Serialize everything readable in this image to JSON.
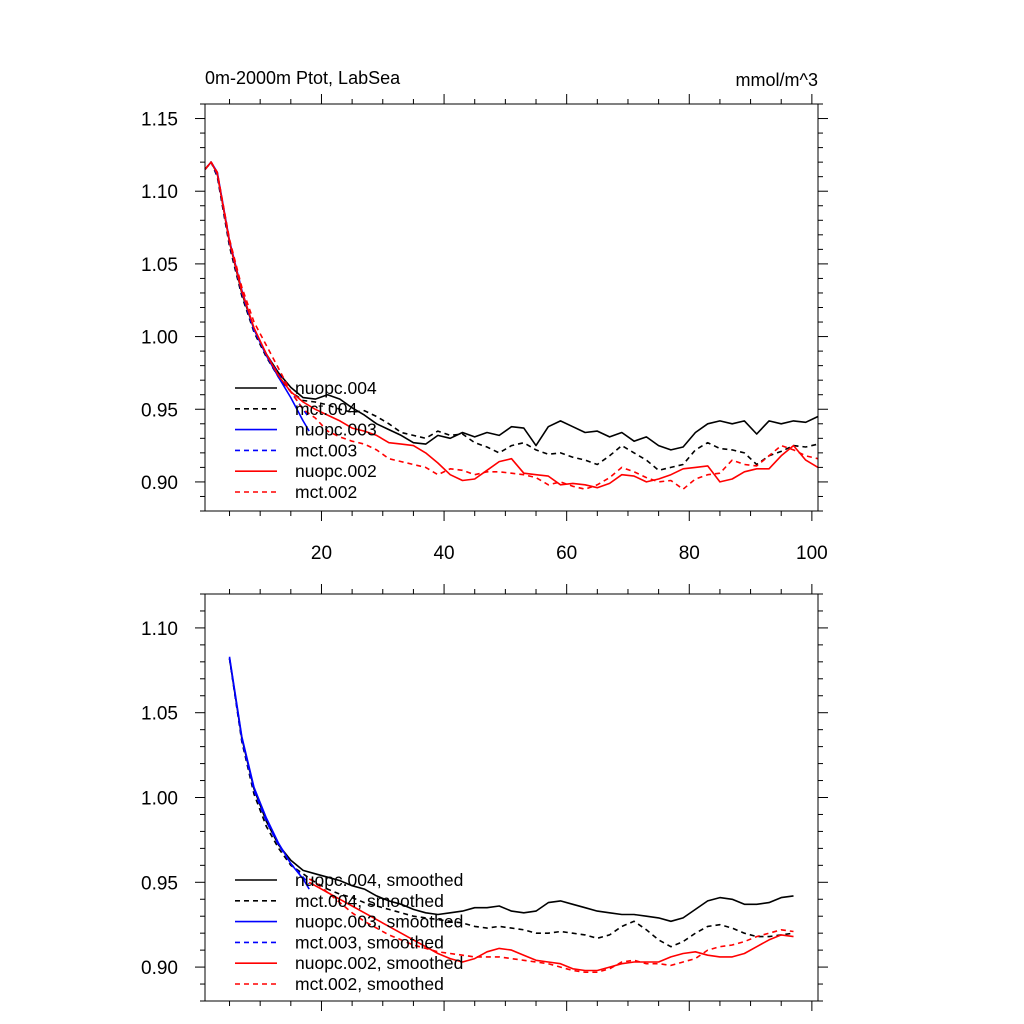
{
  "chart_data": [
    {
      "type": "line",
      "title": "0m-2000m Ptot, LabSea",
      "units": "mmol/m^3",
      "xlim": [
        1,
        101
      ],
      "ylim": [
        0.88,
        1.16
      ],
      "yticks": [
        0.9,
        0.95,
        1.0,
        1.05,
        1.1,
        1.15
      ],
      "xticks": [
        20,
        40,
        60,
        80,
        100
      ],
      "show_x_tick_labels": true,
      "legend_position": "lower-left",
      "series": [
        {
          "name": "nuopc.004",
          "color": "#000000",
          "dash": "solid",
          "x": [
            1,
            2,
            3,
            5,
            7,
            9,
            11,
            13,
            15,
            17,
            19,
            21,
            23,
            25,
            27,
            29,
            31,
            33,
            35,
            37,
            39,
            41,
            43,
            45,
            47,
            49,
            51,
            53,
            55,
            57,
            59,
            61,
            63,
            65,
            67,
            69,
            71,
            73,
            75,
            77,
            79,
            81,
            83,
            85,
            87,
            89,
            91,
            93,
            95,
            97,
            99,
            101
          ],
          "y": [
            1.115,
            1.12,
            1.112,
            1.065,
            1.03,
            1.005,
            0.988,
            0.975,
            0.965,
            0.958,
            0.957,
            0.96,
            0.957,
            0.951,
            0.946,
            0.94,
            0.936,
            0.932,
            0.927,
            0.926,
            0.932,
            0.93,
            0.934,
            0.931,
            0.934,
            0.932,
            0.938,
            0.937,
            0.925,
            0.938,
            0.942,
            0.938,
            0.934,
            0.935,
            0.931,
            0.934,
            0.928,
            0.931,
            0.925,
            0.922,
            0.924,
            0.934,
            0.94,
            0.942,
            0.94,
            0.942,
            0.933,
            0.942,
            0.94,
            0.942,
            0.941,
            0.945
          ]
        },
        {
          "name": "mct.004",
          "color": "#000000",
          "dash": "dashed",
          "x": [
            1,
            2,
            3,
            5,
            7,
            9,
            11,
            13,
            15,
            17,
            19,
            21,
            23,
            25,
            27,
            29,
            31,
            33,
            35,
            37,
            39,
            41,
            43,
            45,
            47,
            49,
            51,
            53,
            55,
            57,
            59,
            61,
            63,
            65,
            67,
            69,
            71,
            73,
            75,
            77,
            79,
            81,
            83,
            85,
            87,
            89,
            91,
            93,
            95,
            97,
            99,
            101
          ],
          "y": [
            1.115,
            1.12,
            1.11,
            1.062,
            1.028,
            1.003,
            0.986,
            0.972,
            0.962,
            0.956,
            0.955,
            0.953,
            0.95,
            0.948,
            0.949,
            0.945,
            0.94,
            0.934,
            0.932,
            0.93,
            0.935,
            0.932,
            0.933,
            0.927,
            0.924,
            0.92,
            0.925,
            0.927,
            0.922,
            0.919,
            0.92,
            0.917,
            0.915,
            0.912,
            0.918,
            0.925,
            0.92,
            0.915,
            0.908,
            0.91,
            0.912,
            0.922,
            0.927,
            0.923,
            0.922,
            0.92,
            0.912,
            0.918,
            0.921,
            0.925,
            0.924,
            0.926
          ]
        },
        {
          "name": "nuopc.003",
          "color": "#0000ff",
          "dash": "solid",
          "x": [
            1,
            2,
            3,
            5,
            7,
            9,
            11,
            13,
            15,
            17,
            18
          ],
          "y": [
            1.115,
            1.12,
            1.113,
            1.066,
            1.032,
            1.005,
            0.987,
            0.972,
            0.958,
            0.942,
            0.935
          ]
        },
        {
          "name": "mct.003",
          "color": "#0000ff",
          "dash": "dashed",
          "x": [
            1,
            2,
            3,
            5,
            7,
            9,
            11,
            13,
            15,
            17,
            18
          ],
          "y": [
            1.115,
            1.12,
            1.111,
            1.064,
            1.03,
            1.004,
            0.988,
            0.974,
            0.962,
            0.95,
            0.944
          ]
        },
        {
          "name": "nuopc.002",
          "color": "#ff0000",
          "dash": "solid",
          "x": [
            1,
            2,
            3,
            5,
            7,
            9,
            11,
            13,
            15,
            17,
            19,
            21,
            23,
            25,
            27,
            29,
            31,
            33,
            35,
            37,
            39,
            41,
            43,
            45,
            47,
            49,
            51,
            53,
            55,
            57,
            59,
            61,
            63,
            65,
            67,
            69,
            71,
            73,
            75,
            77,
            79,
            81,
            83,
            85,
            87,
            89,
            91,
            93,
            95,
            97,
            99,
            101
          ],
          "y": [
            1.115,
            1.12,
            1.112,
            1.065,
            1.031,
            1.006,
            0.988,
            0.973,
            0.962,
            0.955,
            0.95,
            0.946,
            0.942,
            0.937,
            0.935,
            0.932,
            0.927,
            0.926,
            0.925,
            0.92,
            0.913,
            0.905,
            0.901,
            0.902,
            0.908,
            0.914,
            0.916,
            0.906,
            0.905,
            0.904,
            0.898,
            0.899,
            0.898,
            0.896,
            0.899,
            0.905,
            0.904,
            0.9,
            0.902,
            0.905,
            0.909,
            0.91,
            0.911,
            0.9,
            0.902,
            0.907,
            0.909,
            0.909,
            0.918,
            0.925,
            0.915,
            0.91
          ]
        },
        {
          "name": "mct.002",
          "color": "#ff0000",
          "dash": "dashed",
          "x": [
            1,
            2,
            3,
            5,
            7,
            9,
            11,
            13,
            15,
            17,
            19,
            21,
            23,
            25,
            27,
            29,
            31,
            33,
            35,
            37,
            39,
            41,
            43,
            45,
            47,
            49,
            51,
            53,
            55,
            57,
            59,
            61,
            63,
            65,
            67,
            69,
            71,
            73,
            75,
            77,
            79,
            81,
            83,
            85,
            87,
            89,
            91,
            93,
            95,
            97,
            99,
            101
          ],
          "y": [
            1.115,
            1.12,
            1.113,
            1.067,
            1.034,
            1.01,
            0.994,
            0.978,
            0.962,
            0.95,
            0.944,
            0.935,
            0.931,
            0.928,
            0.926,
            0.922,
            0.916,
            0.914,
            0.912,
            0.91,
            0.905,
            0.909,
            0.908,
            0.905,
            0.907,
            0.907,
            0.906,
            0.905,
            0.903,
            0.898,
            0.9,
            0.897,
            0.895,
            0.898,
            0.903,
            0.91,
            0.907,
            0.903,
            0.9,
            0.901,
            0.895,
            0.902,
            0.905,
            0.906,
            0.915,
            0.912,
            0.911,
            0.918,
            0.925,
            0.922,
            0.918,
            0.916
          ]
        }
      ]
    },
    {
      "type": "line",
      "title": "",
      "units": "",
      "xlim": [
        1,
        101
      ],
      "ylim": [
        0.88,
        1.12
      ],
      "yticks": [
        0.9,
        0.95,
        1.0,
        1.05,
        1.1
      ],
      "xticks": [
        20,
        40,
        60,
        80,
        100
      ],
      "show_x_tick_labels": false,
      "legend_position": "lower-left",
      "series": [
        {
          "name": "nuopc.004, smoothed",
          "color": "#000000",
          "dash": "solid",
          "x": [
            5,
            7,
            9,
            11,
            13,
            15,
            17,
            19,
            21,
            23,
            25,
            27,
            29,
            31,
            33,
            35,
            37,
            39,
            41,
            43,
            45,
            47,
            49,
            51,
            53,
            55,
            57,
            59,
            61,
            63,
            65,
            67,
            69,
            71,
            73,
            75,
            77,
            79,
            81,
            83,
            85,
            87,
            89,
            91,
            93,
            95,
            97
          ],
          "y": [
            1.082,
            1.035,
            1.005,
            0.986,
            0.972,
            0.963,
            0.957,
            0.955,
            0.953,
            0.951,
            0.948,
            0.946,
            0.942,
            0.939,
            0.937,
            0.934,
            0.932,
            0.931,
            0.932,
            0.933,
            0.935,
            0.935,
            0.936,
            0.933,
            0.932,
            0.933,
            0.938,
            0.939,
            0.937,
            0.935,
            0.933,
            0.932,
            0.931,
            0.931,
            0.93,
            0.929,
            0.927,
            0.929,
            0.934,
            0.939,
            0.941,
            0.94,
            0.937,
            0.937,
            0.938,
            0.941,
            0.942
          ]
        },
        {
          "name": "mct.004, smoothed",
          "color": "#000000",
          "dash": "dashed",
          "x": [
            5,
            7,
            9,
            11,
            13,
            15,
            17,
            19,
            21,
            23,
            25,
            27,
            29,
            31,
            33,
            35,
            37,
            39,
            41,
            43,
            45,
            47,
            49,
            51,
            53,
            55,
            57,
            59,
            61,
            63,
            65,
            67,
            69,
            71,
            73,
            75,
            77,
            79,
            81,
            83,
            85,
            87,
            89,
            91,
            93,
            95,
            97
          ],
          "y": [
            1.082,
            1.033,
            1.002,
            0.983,
            0.97,
            0.96,
            0.955,
            0.95,
            0.946,
            0.943,
            0.941,
            0.938,
            0.936,
            0.934,
            0.932,
            0.93,
            0.929,
            0.928,
            0.927,
            0.926,
            0.924,
            0.923,
            0.924,
            0.923,
            0.922,
            0.92,
            0.92,
            0.921,
            0.92,
            0.919,
            0.917,
            0.919,
            0.924,
            0.927,
            0.922,
            0.916,
            0.912,
            0.915,
            0.92,
            0.924,
            0.925,
            0.923,
            0.92,
            0.918,
            0.918,
            0.919,
            0.92
          ]
        },
        {
          "name": "nuopc.003, smoothed",
          "color": "#0000ff",
          "dash": "solid",
          "x": [
            5,
            7,
            9,
            11,
            13,
            15,
            17,
            18
          ],
          "y": [
            1.083,
            1.036,
            1.006,
            0.988,
            0.973,
            0.961,
            0.952,
            0.946
          ]
        },
        {
          "name": "mct.003, smoothed",
          "color": "#0000ff",
          "dash": "dashed",
          "x": [
            5,
            7,
            9,
            11,
            13,
            15,
            17,
            18
          ],
          "y": [
            1.082,
            1.034,
            1.004,
            0.986,
            0.972,
            0.961,
            0.953,
            0.949
          ]
        },
        {
          "name": "nuopc.002, smoothed",
          "color": "#ff0000",
          "dash": "solid",
          "x": [
            18,
            19,
            21,
            23,
            25,
            27,
            29,
            31,
            33,
            35,
            37,
            39,
            41,
            43,
            45,
            47,
            49,
            51,
            53,
            55,
            57,
            59,
            61,
            63,
            65,
            67,
            69,
            71,
            73,
            75,
            77,
            79,
            81,
            83,
            85,
            87,
            89,
            91,
            93,
            95,
            97
          ],
          "y": [
            0.95,
            0.948,
            0.944,
            0.94,
            0.936,
            0.932,
            0.928,
            0.924,
            0.92,
            0.916,
            0.912,
            0.908,
            0.905,
            0.903,
            0.905,
            0.909,
            0.911,
            0.91,
            0.907,
            0.904,
            0.903,
            0.902,
            0.899,
            0.898,
            0.898,
            0.9,
            0.902,
            0.903,
            0.903,
            0.903,
            0.906,
            0.908,
            0.909,
            0.907,
            0.906,
            0.906,
            0.908,
            0.912,
            0.916,
            0.919,
            0.918
          ]
        },
        {
          "name": "mct.002, smoothed",
          "color": "#ff0000",
          "dash": "dashed",
          "x": [
            18,
            19,
            21,
            23,
            25,
            27,
            29,
            31,
            33,
            35,
            37,
            39,
            41,
            43,
            45,
            47,
            49,
            51,
            53,
            55,
            57,
            59,
            61,
            63,
            65,
            67,
            69,
            71,
            73,
            75,
            77,
            79,
            81,
            83,
            85,
            87,
            89,
            91,
            93,
            95,
            97
          ],
          "y": [
            0.952,
            0.95,
            0.944,
            0.938,
            0.932,
            0.927,
            0.923,
            0.919,
            0.916,
            0.913,
            0.911,
            0.909,
            0.908,
            0.907,
            0.906,
            0.906,
            0.906,
            0.905,
            0.904,
            0.903,
            0.902,
            0.9,
            0.898,
            0.897,
            0.897,
            0.899,
            0.903,
            0.904,
            0.902,
            0.902,
            0.901,
            0.903,
            0.905,
            0.91,
            0.912,
            0.913,
            0.915,
            0.918,
            0.92,
            0.922,
            0.921
          ]
        }
      ]
    }
  ]
}
